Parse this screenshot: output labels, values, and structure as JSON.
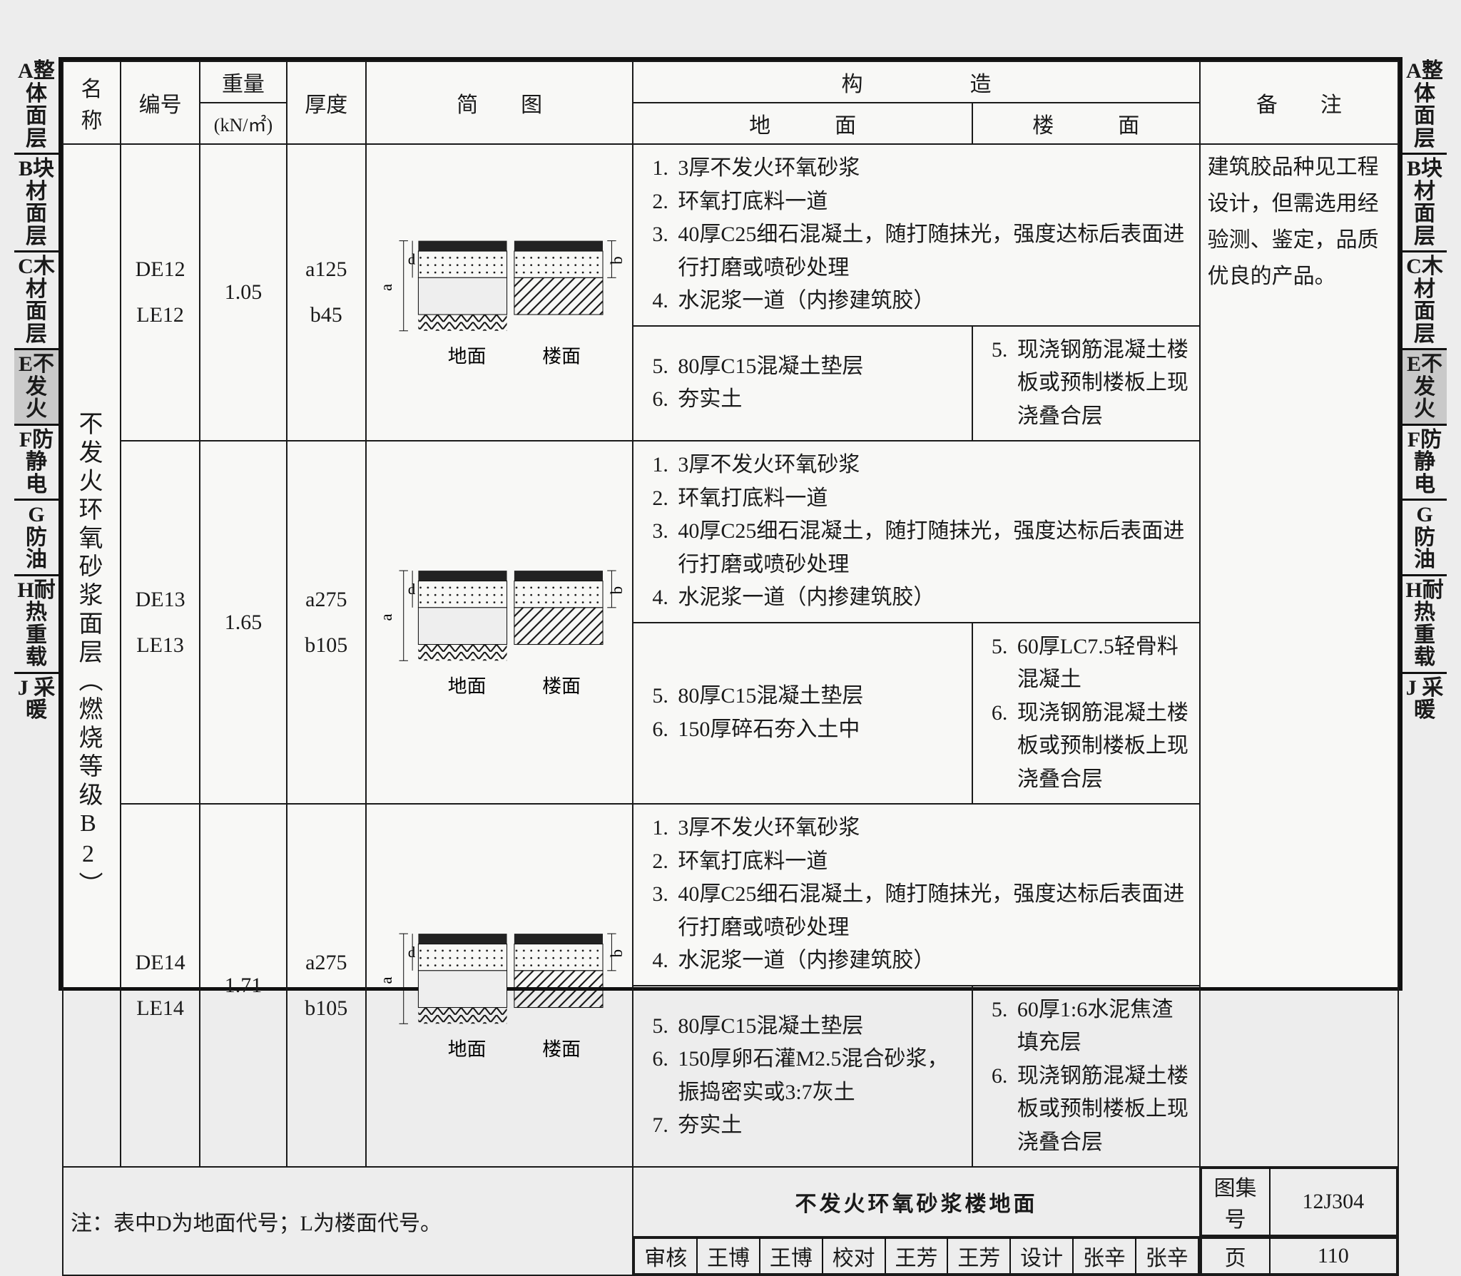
{
  "sideTabs": [
    {
      "key": "A",
      "label": "A整体面层",
      "selected": false
    },
    {
      "key": "B",
      "label": "B块材面层",
      "selected": false
    },
    {
      "key": "C",
      "label": "C木材面层",
      "selected": false
    },
    {
      "key": "E",
      "label": "E不发火",
      "selected": true
    },
    {
      "key": "F",
      "label": "F防静电",
      "selected": false
    },
    {
      "key": "G",
      "label": "G 防 油",
      "selected": false
    },
    {
      "key": "H",
      "label": "H耐热重载",
      "selected": false
    },
    {
      "key": "J",
      "label": "J 采 暖",
      "selected": false
    }
  ],
  "headers": {
    "name": "名称",
    "code": "编号",
    "weight": "重量",
    "weightUnit": "(kN/㎡)",
    "thickness": "厚度",
    "diagram": "简　　图",
    "construction": "构　　　　　造",
    "ground": "地　　　面",
    "floor": "楼　　　面",
    "remark": "备　　注"
  },
  "categoryName": "不发火环氧砂浆面层（燃烧等级B2）",
  "rows": [
    {
      "codes": [
        "DE12",
        "LE12"
      ],
      "weight": "1.05",
      "thickness": [
        "a125",
        "b45"
      ],
      "diagramLabels": {
        "left": "地面",
        "right": "楼面"
      },
      "layersCommon": [
        "3厚不发火环氧砂浆",
        "环氧打底料一道",
        "40厚C25细石混凝土，随打随抹光，强度达标后表面进行打磨或喷砂处理",
        "水泥浆一道（内掺建筑胶）"
      ],
      "layersGround": [
        "80厚C15混凝土垫层",
        "夯实土"
      ],
      "layersFloor": [
        "现浇钢筋混凝土楼板或预制楼板上现浇叠合层"
      ],
      "layersFloorStart": 5
    },
    {
      "codes": [
        "DE13",
        "LE13"
      ],
      "weight": "1.65",
      "thickness": [
        "a275",
        "b105"
      ],
      "diagramLabels": {
        "left": "地面",
        "right": "楼面"
      },
      "layersCommon": [
        "3厚不发火环氧砂浆",
        "环氧打底料一道",
        "40厚C25细石混凝土，随打随抹光，强度达标后表面进行打磨或喷砂处理",
        "水泥浆一道（内掺建筑胶）"
      ],
      "layersGround": [
        "80厚C15混凝土垫层",
        "150厚碎石夯入土中"
      ],
      "layersFloor": [
        "60厚LC7.5轻骨料混凝土",
        "现浇钢筋混凝土楼板或预制楼板上现浇叠合层"
      ],
      "layersFloorStart": 5
    },
    {
      "codes": [
        "DE14",
        "LE14"
      ],
      "weight": "1.71",
      "thickness": [
        "a275",
        "b105"
      ],
      "diagramLabels": {
        "left": "地面",
        "right": "楼面"
      },
      "layersCommon": [
        "3厚不发火环氧砂浆",
        "环氧打底料一道",
        "40厚C25细石混凝土，随打随抹光，强度达标后表面进行打磨或喷砂处理",
        "水泥浆一道（内掺建筑胶）"
      ],
      "layersGround": [
        "80厚C15混凝土垫层",
        "150厚卵石灌M2.5混合砂浆，振捣密实或3:7灰土",
        "夯实土"
      ],
      "layersFloor": [
        "60厚1:6水泥焦渣填充层",
        "现浇钢筋混凝土楼板或预制楼板上现浇叠合层"
      ],
      "layersFloorStart": 5
    }
  ],
  "remarkText": "建筑胶品种见工程设计，但需选用经验测、鉴定，品质优良的产品。",
  "footnote": "注：表中D为地面代号；L为楼面代号。",
  "titleStrip": "不发火环氧砂浆楼地面",
  "titleBlock": {
    "setLabel": "图集号",
    "setNo": "12J304",
    "pageLabel": "页",
    "pageNo": "110",
    "review": "审核",
    "reviewName": "王博",
    "reviewSig": "王博",
    "check": "校对",
    "checkName": "王芳",
    "checkSig": "王芳",
    "design": "设计",
    "designName": "张辛",
    "designSig": "张辛"
  },
  "colors": {
    "border": "#1a1a1a",
    "bg": "#f8f8f6",
    "pageBg": "#ededed",
    "tabSelected": "#c9c9c9"
  },
  "typography": {
    "bodySize": 30,
    "headerSize": 30,
    "titleSize": 36,
    "noteSize": 26,
    "family": "SimSun"
  }
}
